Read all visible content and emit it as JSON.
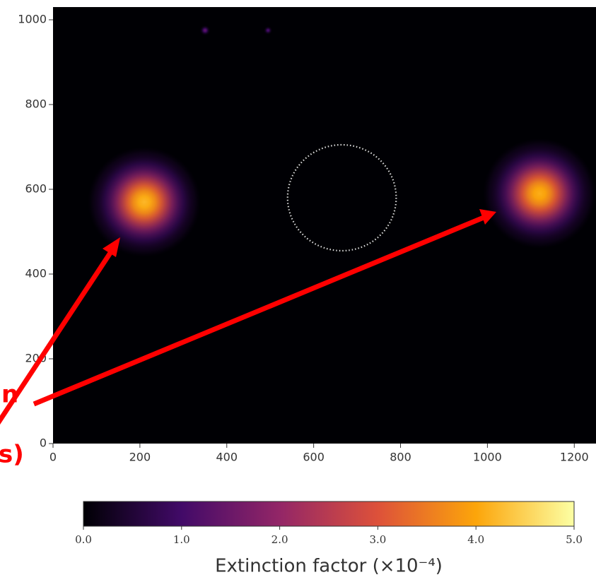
{
  "chart_data": {
    "type": "heatmap",
    "xlim": [
      0,
      1250
    ],
    "ylim": [
      0,
      1030
    ],
    "xticks": [
      0,
      200,
      400,
      600,
      800,
      1000,
      1200
    ],
    "yticks": [
      0,
      200,
      400,
      600,
      800,
      1000
    ],
    "colormap": [
      "#000004",
      "#420a68",
      "#932667",
      "#dd513a",
      "#fca50a",
      "#fcffa4"
    ],
    "spots": [
      {
        "x": 210,
        "y": 570,
        "peak": 4.2,
        "radius": 130
      },
      {
        "x": 1120,
        "y": 590,
        "peak": 4.1,
        "radius": 130
      },
      {
        "x": 350,
        "y": 975,
        "peak": 1.4,
        "radius": 12
      },
      {
        "x": 495,
        "y": 975,
        "peak": 1.1,
        "radius": 10
      }
    ],
    "circle": {
      "x": 665,
      "y": 580,
      "r": 125
    },
    "annotations": [
      "n",
      "s)"
    ],
    "colorbar": {
      "label": "Extinction factor (×10⁻⁴)",
      "lim": [
        0,
        5
      ],
      "ticks": [
        {
          "value": 0,
          "label": "0.0"
        },
        {
          "value": 1,
          "label": "1.0"
        },
        {
          "value": 2,
          "label": "2.0"
        },
        {
          "value": 3,
          "label": "3.0"
        },
        {
          "value": 4,
          "label": "4.0"
        },
        {
          "value": 5,
          "label": "5.0"
        }
      ]
    }
  }
}
